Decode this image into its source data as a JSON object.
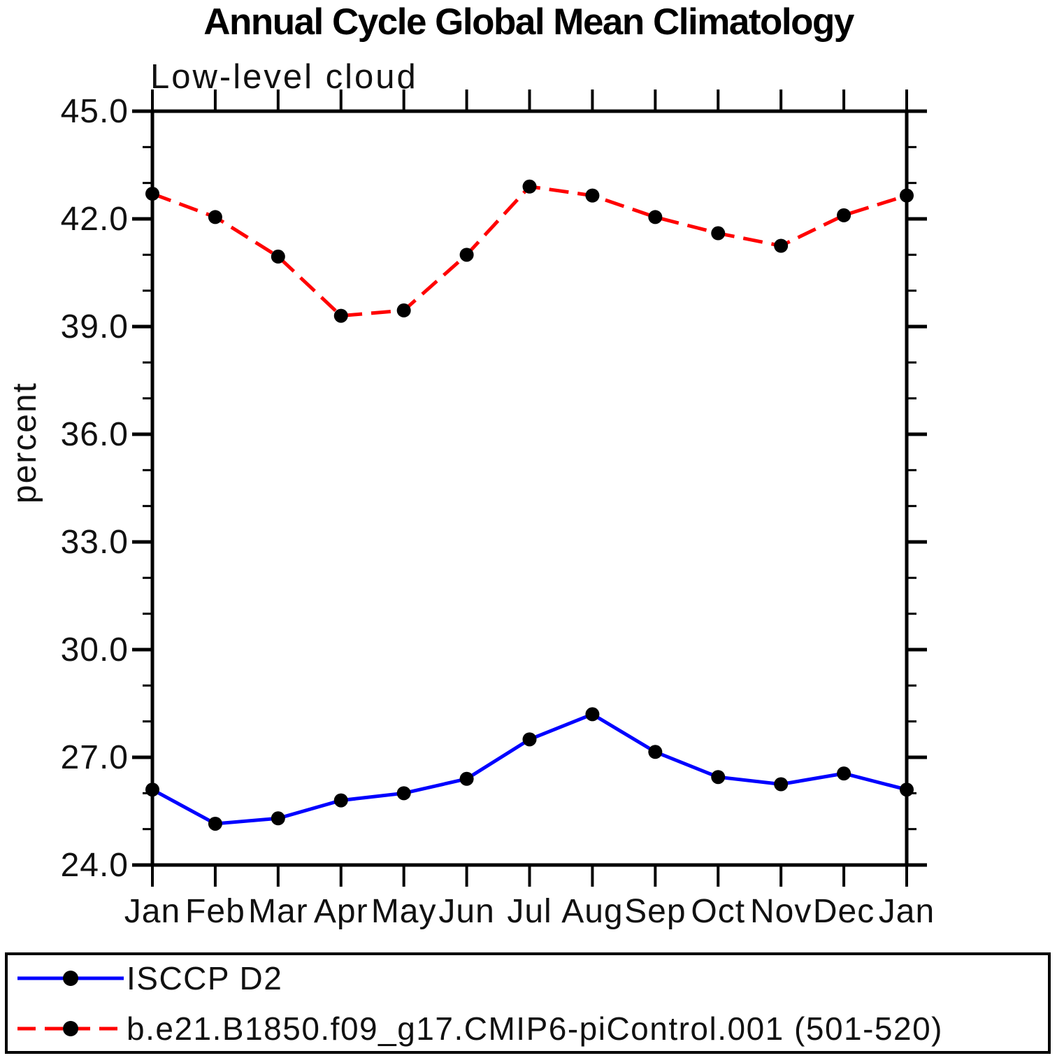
{
  "chart_data": {
    "type": "line",
    "title": "Annual Cycle Global Mean Climatology",
    "subtitle": "Low-level cloud",
    "ylabel": "percent",
    "xlabel": "",
    "categories": [
      "Jan",
      "Feb",
      "Mar",
      "Apr",
      "May",
      "Jun",
      "Jul",
      "Aug",
      "Sep",
      "Oct",
      "Nov",
      "Dec",
      "Jan"
    ],
    "series": [
      {
        "name": "ISCCP D2",
        "color": "#0000ff",
        "line_style": "solid",
        "marker": "circle",
        "marker_color": "#000000",
        "values": [
          26.1,
          25.15,
          25.3,
          25.8,
          26.0,
          26.4,
          27.5,
          28.2,
          27.15,
          26.45,
          26.25,
          26.55,
          26.1
        ]
      },
      {
        "name": "b.e21.B1850.f09_g17.CMIP6-piControl.001 (501-520)",
        "color": "#ff0000",
        "line_style": "dashed",
        "marker": "circle",
        "marker_color": "#000000",
        "values": [
          42.7,
          42.05,
          40.95,
          39.3,
          39.45,
          41.0,
          42.9,
          42.65,
          42.05,
          41.6,
          41.25,
          42.1,
          42.65
        ]
      }
    ],
    "ylim": [
      24.0,
      45.0
    ],
    "ytick_major_step": 3.0,
    "ytick_minor_step": 1.0,
    "ytick_labels": [
      "45.0",
      "42.0",
      "39.0",
      "36.0",
      "33.0",
      "30.0",
      "27.0",
      "24.0"
    ],
    "grid": false,
    "legend_position": "bottom-box",
    "axis_color": "#000000",
    "text_color": "#111111"
  }
}
